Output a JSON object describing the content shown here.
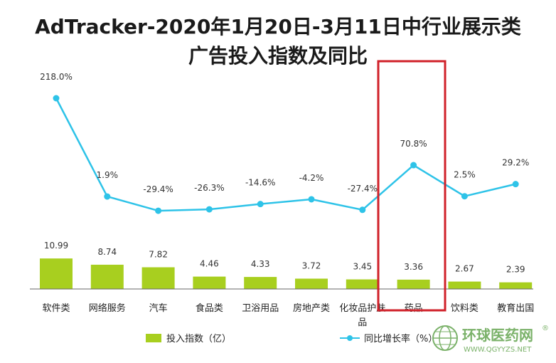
{
  "title_line1": "AdTracker-2020年1月20日-3月11日中行业展示类",
  "title_line2": "广告投入指数及同比",
  "colors": {
    "bar": "#a8cf1f",
    "line": "#2ec3e8",
    "highlight": "#d0212a",
    "axis": "#666666"
  },
  "chart_data": {
    "type": "bar+line",
    "title": "AdTracker-2020年1月20日-3月11日中行业展示类广告投入指数及同比",
    "categories": [
      "软件类",
      "网络服务",
      "汽车",
      "食品类",
      "卫浴用品",
      "房地产类",
      "化妆品护肤品",
      "药品",
      "饮料类",
      "教育出国"
    ],
    "category_lines": [
      [
        "软件类"
      ],
      [
        "网络服务"
      ],
      [
        "汽车"
      ],
      [
        "食品类"
      ],
      [
        "卫浴用品"
      ],
      [
        "房地产类"
      ],
      [
        "化妆品护肤",
        "品"
      ],
      [
        "药品"
      ],
      [
        "饮料类"
      ],
      [
        "教育出国"
      ]
    ],
    "series": [
      {
        "name": "投入指数（亿）",
        "type": "bar",
        "values": [
          10.99,
          8.74,
          7.82,
          4.46,
          4.33,
          3.72,
          3.45,
          3.36,
          2.67,
          2.39
        ],
        "labels": [
          "10.99",
          "8.74",
          "7.82",
          "4.46",
          "4.33",
          "3.72",
          "3.45",
          "3.36",
          "2.67",
          "2.39"
        ]
      },
      {
        "name": "同比增长率（%）",
        "type": "line",
        "values": [
          218.0,
          1.9,
          -29.4,
          -26.3,
          -14.6,
          -4.2,
          -27.4,
          70.8,
          2.5,
          29.2
        ],
        "labels": [
          "218.0%",
          "1.9%",
          "-29.4%",
          "-26.3%",
          "-14.6%",
          "-4.2%",
          "-27.4%",
          "70.8%",
          "2.5%",
          "29.2%"
        ]
      }
    ],
    "highlighted_category": "药品",
    "legend_position": "bottom"
  },
  "watermark": {
    "text": "环球医药网",
    "url": "WWW.QGYYZS.NET",
    "mark": "®"
  }
}
